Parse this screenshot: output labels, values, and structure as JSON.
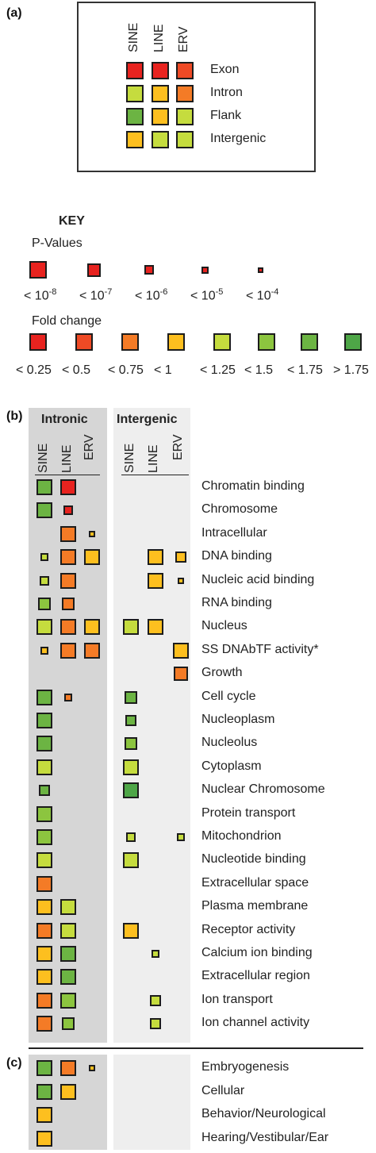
{
  "panel_labels": {
    "a": "(a)",
    "b": "(b)",
    "c": "(c)"
  },
  "colors": {
    "c1": "#e8231f",
    "c2": "#ef4a25",
    "c3": "#f47b26",
    "c4": "#fdbf1f",
    "c5": "#c5dc3e",
    "c6": "#8cc53f",
    "c7": "#6cb443",
    "c8": "#4ea647"
  },
  "legend_a": {
    "columns": [
      "SINE",
      "LINE",
      "ERV"
    ],
    "rows": [
      {
        "label": "Exon",
        "colors": [
          "c1",
          "c1",
          "c2"
        ]
      },
      {
        "label": "Intron",
        "colors": [
          "c5",
          "c4",
          "c3"
        ]
      },
      {
        "label": "Flank",
        "colors": [
          "c7",
          "c4",
          "c5"
        ]
      },
      {
        "label": "Intergenic",
        "colors": [
          "c4",
          "c5",
          "c5"
        ]
      }
    ]
  },
  "key": {
    "title": "KEY",
    "pvalues_title": "P-Values",
    "pvalues": [
      {
        "base": "< 10",
        "exp": "-8",
        "size": 1.0
      },
      {
        "base": "< 10",
        "exp": "-7",
        "size": 0.75
      },
      {
        "base": "< 10",
        "exp": "-6",
        "size": 0.55
      },
      {
        "base": "< 10",
        "exp": "-5",
        "size": 0.4
      },
      {
        "base": "< 10",
        "exp": "-4",
        "size": 0.25
      }
    ],
    "fold_title": "Fold change",
    "fold": [
      {
        "label": "< 0.25",
        "color": "c1"
      },
      {
        "label": "< 0.5",
        "color": "c2"
      },
      {
        "label": "< 0.75",
        "color": "c3"
      },
      {
        "label": "< 1",
        "color": "c4"
      },
      {
        "label": "< 1.25",
        "color": "c5"
      },
      {
        "label": "< 1.5",
        "color": "c6"
      },
      {
        "label": "< 1.75",
        "color": "c7"
      },
      {
        "label": "> 1.75",
        "color": "c8"
      }
    ]
  },
  "panel_b": {
    "group_intronic": "Intronic",
    "group_intergenic": "Intergenic",
    "columns": [
      "SINE",
      "LINE",
      "ERV"
    ],
    "rows": [
      {
        "label": "Chromatin binding",
        "cells": [
          [
            "c7",
            1.0
          ],
          [
            "c1",
            1.0
          ],
          null,
          null,
          null,
          null
        ]
      },
      {
        "label": "Chromosome",
        "cells": [
          [
            "c7",
            1.0
          ],
          [
            "c1",
            0.6
          ],
          null,
          null,
          null,
          null
        ]
      },
      {
        "label": "Intracellular",
        "cells": [
          null,
          [
            "c3",
            1.0
          ],
          [
            "c4",
            0.4
          ],
          null,
          null,
          null
        ]
      },
      {
        "label": "DNA binding",
        "cells": [
          [
            "c5",
            0.5
          ],
          [
            "c3",
            1.0
          ],
          [
            "c4",
            1.0
          ],
          null,
          [
            "c4",
            1.0
          ],
          [
            "c4",
            0.7
          ]
        ]
      },
      {
        "label": "Nucleic acid binding",
        "cells": [
          [
            "c5",
            0.6
          ],
          [
            "c3",
            1.0
          ],
          null,
          null,
          [
            "c4",
            1.0
          ],
          [
            "c4",
            0.4
          ]
        ]
      },
      {
        "label": "RNA binding",
        "cells": [
          [
            "c6",
            0.8
          ],
          [
            "c3",
            0.8
          ],
          null,
          null,
          null,
          null
        ]
      },
      {
        "label": "Nucleus",
        "cells": [
          [
            "c5",
            1.0
          ],
          [
            "c3",
            1.0
          ],
          [
            "c4",
            1.0
          ],
          [
            "c5",
            1.0
          ],
          [
            "c4",
            1.0
          ],
          null
        ]
      },
      {
        "label": "SS DNAbTF activity*",
        "cells": [
          [
            "c4",
            0.5
          ],
          [
            "c3",
            1.0
          ],
          [
            "c3",
            1.0
          ],
          null,
          null,
          [
            "c4",
            1.0
          ]
        ]
      },
      {
        "label": "Growth",
        "cells": [
          null,
          null,
          null,
          null,
          null,
          [
            "c3",
            0.9
          ]
        ]
      },
      {
        "label": "Cell cycle",
        "cells": [
          [
            "c7",
            1.0
          ],
          [
            "c3",
            0.5
          ],
          null,
          [
            "c7",
            0.8
          ],
          null,
          null
        ]
      },
      {
        "label": "Nucleoplasm",
        "cells": [
          [
            "c7",
            1.0
          ],
          null,
          null,
          [
            "c7",
            0.7
          ],
          null,
          null
        ]
      },
      {
        "label": "Nucleolus",
        "cells": [
          [
            "c7",
            1.0
          ],
          null,
          null,
          [
            "c6",
            0.8
          ],
          null,
          null
        ]
      },
      {
        "label": "Cytoplasm",
        "cells": [
          [
            "c5",
            1.0
          ],
          null,
          null,
          [
            "c5",
            1.0
          ],
          null,
          null
        ]
      },
      {
        "label": "Nuclear Chromosome",
        "cells": [
          [
            "c7",
            0.7
          ],
          null,
          null,
          [
            "c8",
            1.0
          ],
          null,
          null
        ]
      },
      {
        "label": "Protein transport",
        "cells": [
          [
            "c6",
            1.0
          ],
          null,
          null,
          null,
          null,
          null
        ]
      },
      {
        "label": "Mitochondrion",
        "cells": [
          [
            "c6",
            1.0
          ],
          null,
          null,
          [
            "c5",
            0.6
          ],
          null,
          [
            "c5",
            0.5
          ]
        ]
      },
      {
        "label": "Nucleotide binding",
        "cells": [
          [
            "c5",
            1.0
          ],
          null,
          null,
          [
            "c5",
            1.0
          ],
          null,
          null
        ]
      },
      {
        "label": "Extracellular space",
        "cells": [
          [
            "c3",
            1.0
          ],
          null,
          null,
          null,
          null,
          null
        ]
      },
      {
        "label": "Plasma membrane",
        "cells": [
          [
            "c4",
            1.0
          ],
          [
            "c5",
            1.0
          ],
          null,
          null,
          null,
          null
        ]
      },
      {
        "label": "Receptor activity",
        "cells": [
          [
            "c3",
            1.0
          ],
          [
            "c5",
            1.0
          ],
          null,
          [
            "c4",
            1.0
          ],
          null,
          null
        ]
      },
      {
        "label": "Calcium ion binding",
        "cells": [
          [
            "c4",
            1.0
          ],
          [
            "c7",
            1.0
          ],
          null,
          null,
          [
            "c5",
            0.5
          ],
          null
        ]
      },
      {
        "label": "Extracellular region",
        "cells": [
          [
            "c4",
            1.0
          ],
          [
            "c7",
            1.0
          ],
          null,
          null,
          null,
          null
        ]
      },
      {
        "label": "Ion transport",
        "cells": [
          [
            "c3",
            1.0
          ],
          [
            "c6",
            1.0
          ],
          null,
          null,
          [
            "c5",
            0.7
          ],
          null
        ]
      },
      {
        "label": "Ion channel activity",
        "cells": [
          [
            "c3",
            1.0
          ],
          [
            "c6",
            0.8
          ],
          null,
          null,
          [
            "c5",
            0.7
          ],
          null
        ]
      }
    ]
  },
  "panel_c": {
    "rows": [
      {
        "label": "Embryogenesis",
        "cells": [
          [
            "c7",
            1.0
          ],
          [
            "c3",
            1.0
          ],
          [
            "c4",
            0.4
          ],
          null,
          null,
          null
        ]
      },
      {
        "label": "Cellular",
        "cells": [
          [
            "c7",
            1.0
          ],
          [
            "c4",
            1.0
          ],
          null,
          null,
          null,
          null
        ]
      },
      {
        "label": "Behavior/Neurological",
        "cells": [
          [
            "c4",
            1.0
          ],
          null,
          null,
          null,
          null,
          null
        ]
      },
      {
        "label": "Hearing/Vestibular/Ear",
        "cells": [
          [
            "c4",
            1.0
          ],
          null,
          null,
          null,
          null,
          null
        ]
      }
    ]
  }
}
